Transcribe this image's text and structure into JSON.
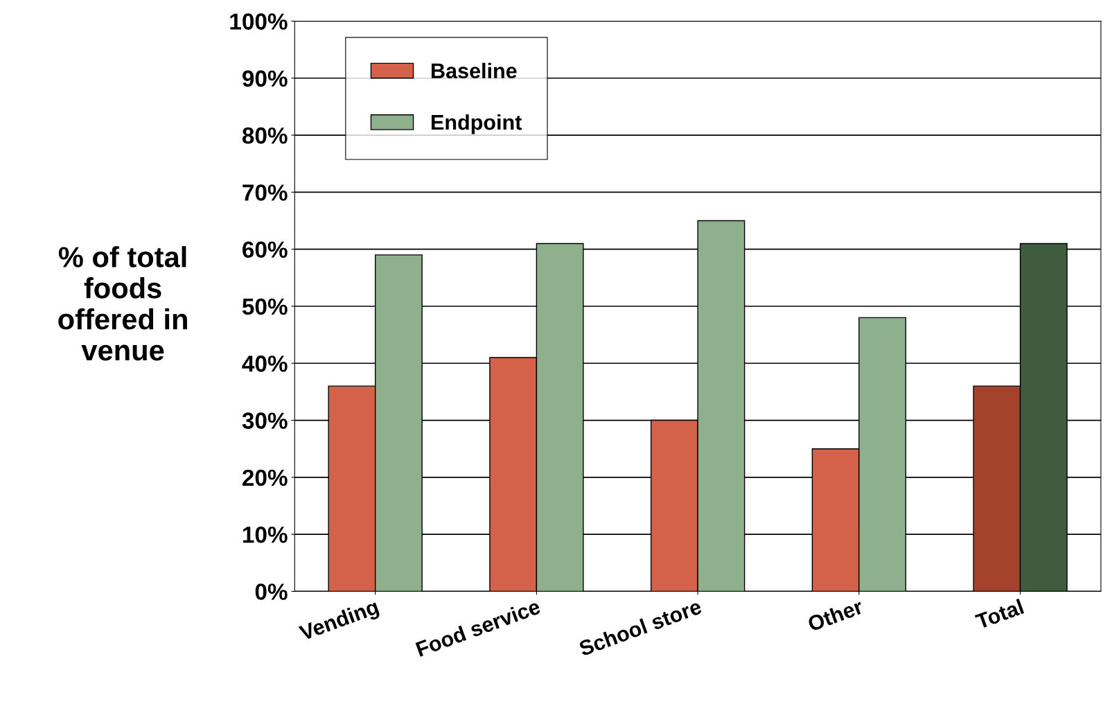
{
  "chart_data": {
    "type": "bar",
    "ylabel": "% of total\nfoods\noffered in\nvenue",
    "categories": [
      "Vending",
      "Food service",
      "School store",
      "Other",
      "Total"
    ],
    "series": [
      {
        "name": "Baseline",
        "color": "#d4614a",
        "colors": [
          "#d4614a",
          "#d4614a",
          "#d4614a",
          "#d4614a",
          "#a5422b"
        ],
        "values": [
          36,
          41,
          30,
          25,
          36
        ]
      },
      {
        "name": "Endpoint",
        "color": "#8fb08c",
        "colors": [
          "#8fb08c",
          "#8fb08c",
          "#8fb08c",
          "#8fb08c",
          "#405c3f"
        ],
        "values": [
          59,
          61,
          65,
          48,
          61
        ]
      }
    ],
    "ylim": [
      0,
      100
    ],
    "yticks": [
      {
        "value": 0,
        "label": "0%"
      },
      {
        "value": 10,
        "label": "10%"
      },
      {
        "value": 20,
        "label": "20%"
      },
      {
        "value": 30,
        "label": "30%"
      },
      {
        "value": 40,
        "label": "40%"
      },
      {
        "value": 50,
        "label": "50%"
      },
      {
        "value": 60,
        "label": "60%"
      },
      {
        "value": 70,
        "label": "70%"
      },
      {
        "value": 80,
        "label": "80%"
      },
      {
        "value": 90,
        "label": "90%"
      },
      {
        "value": 100,
        "label": "100%"
      }
    ],
    "grid": "y",
    "legend": "top left"
  }
}
